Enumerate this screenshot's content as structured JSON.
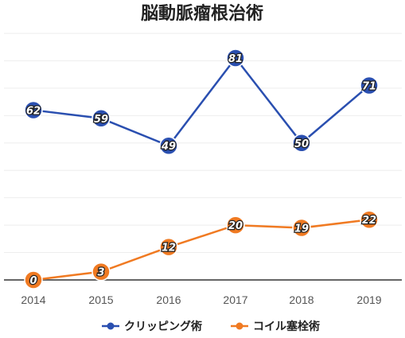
{
  "chart_data": {
    "type": "line",
    "title": "脳動脈瘤根治術",
    "categories": [
      "2014",
      "2015",
      "2016",
      "2017",
      "2018",
      "2019"
    ],
    "ylim": [
      0,
      90
    ],
    "grid": true,
    "legend_position": "bottom",
    "series": [
      {
        "name": "クリッピング術",
        "color": "#2a4fb0",
        "values": [
          62,
          59,
          49,
          81,
          50,
          71
        ]
      },
      {
        "name": "コイル塞栓術",
        "color": "#f07a22",
        "values": [
          0,
          3,
          12,
          20,
          19,
          22
        ]
      }
    ]
  }
}
